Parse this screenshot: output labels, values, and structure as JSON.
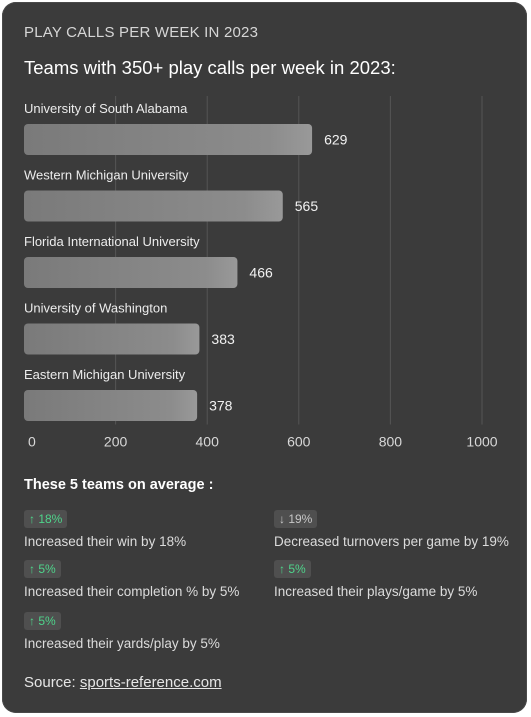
{
  "header": {
    "overline": "PLAY CALLS PER WEEK IN 2023",
    "title": "Teams with 350+ play calls per week in 2023:"
  },
  "chart_data": {
    "type": "bar",
    "orientation": "horizontal",
    "categories": [
      "University of South Alabama",
      "Western Michigan University",
      "Florida International University",
      "University of Washington",
      "Eastern Michigan University"
    ],
    "values": [
      629,
      565,
      466,
      383,
      378
    ],
    "xlim": [
      0,
      1000
    ],
    "xticks": [
      0,
      200,
      400,
      600,
      800,
      1000
    ],
    "grid": "vertical",
    "bar_color": "#8a8a8a"
  },
  "summary": {
    "title": "These 5 teams on average :",
    "stats": [
      {
        "badge": "↑ 18%",
        "direction": "up",
        "text": "Increased their win by 18%"
      },
      {
        "badge": "↓ 19%",
        "direction": "down",
        "text": "Decreased turnovers per game by 19%"
      },
      {
        "badge": "↑ 5%",
        "direction": "up",
        "text": "Increased their completion % by 5%"
      },
      {
        "badge": "↑ 5%",
        "direction": "up",
        "text": "Increased their plays/game by 5%"
      },
      {
        "badge": "↑ 5%",
        "direction": "up",
        "text": "Increased their yards/play by 5%"
      }
    ]
  },
  "source": {
    "label": "Source:",
    "link_text": "sports-reference.com"
  },
  "colors": {
    "background": "#3b3b3b",
    "up": "#4fd48b",
    "badge_bg": "#4f4f4f"
  }
}
